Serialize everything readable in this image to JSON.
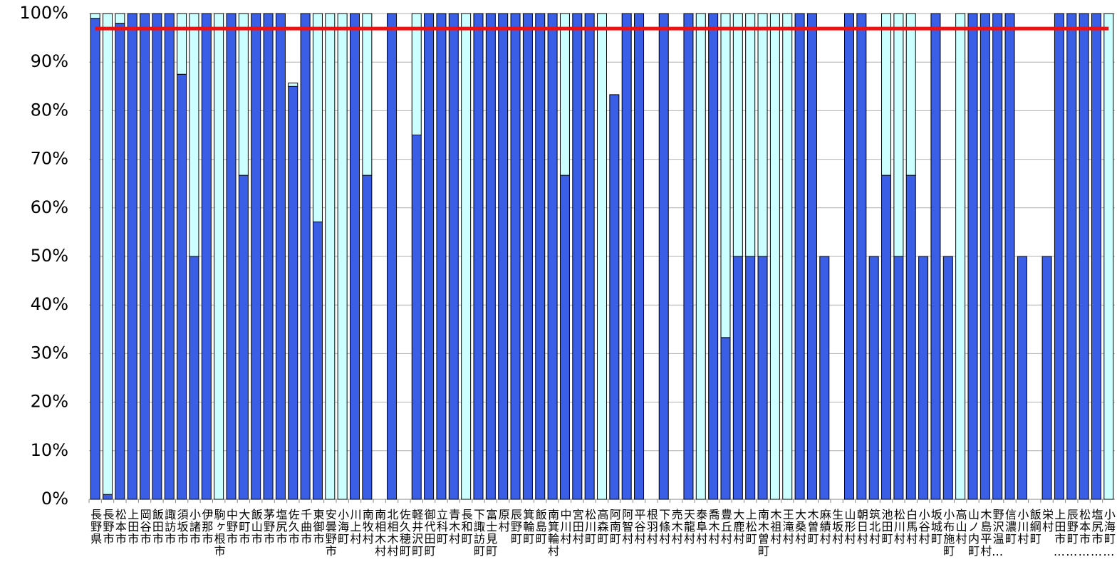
{
  "chart_data": {
    "type": "bar",
    "stacked": true,
    "grid": true,
    "categories": [
      "長野県",
      "長野市",
      "松本市",
      "上田市",
      "岡谷市",
      "飯田市",
      "諏訪市",
      "須坂市",
      "小諸市",
      "伊那市",
      "駒ヶ根市",
      "中野市",
      "大町市",
      "飯山市",
      "茅野市",
      "塩尻市",
      "佐久市",
      "千曲市",
      "東御市",
      "安曇野市",
      "小海町",
      "川上村",
      "南牧村",
      "南相木村",
      "北相木村",
      "佐久穂町",
      "軽井沢町",
      "御代田町",
      "立科町",
      "青木村",
      "長和町",
      "下諏訪町",
      "富士見町",
      "原村",
      "辰野町",
      "箕輪町",
      "飯島町",
      "南箕輪村",
      "中川村",
      "宮田村",
      "松川町",
      "高森町",
      "阿南町",
      "阿智村",
      "平谷村",
      "根羽村",
      "下條村",
      "売木村",
      "天龍村",
      "泰阜村",
      "喬木村",
      "豊丘村",
      "大鹿村",
      "上松町",
      "南木曽町",
      "木祖村",
      "王滝村",
      "大桑村",
      "木曽町",
      "麻績村",
      "生坂村",
      "山形村",
      "朝日村",
      "筑北村",
      "池田町",
      "松川村",
      "白馬村",
      "小谷村",
      "坂城町",
      "小布施町",
      "高山村",
      "山ノ内町",
      "木島平村",
      "野沢温…",
      "信濃町",
      "小川村",
      "飯綱町",
      "栄村",
      "上田市…",
      "辰野町…",
      "松本市…",
      "塩尻市…",
      "小海町…"
    ],
    "series": [
      {
        "color": "#3a5ee6",
        "values": [
          99,
          1,
          98,
          100,
          100,
          100,
          100,
          87.5,
          50,
          100,
          0,
          100,
          66.7,
          100,
          100,
          100,
          85,
          100,
          57.1,
          0,
          0,
          100,
          66.7,
          0,
          100,
          0,
          75,
          100,
          100,
          100,
          0,
          100,
          100,
          100,
          100,
          100,
          100,
          100,
          66.7,
          100,
          100,
          0,
          83.3,
          100,
          100,
          0,
          100,
          0,
          100,
          0,
          100,
          33.3,
          50,
          50,
          50,
          0,
          0,
          100,
          100,
          50,
          0,
          100,
          100,
          50,
          66.7,
          50,
          66.7,
          50,
          100,
          50,
          0,
          100,
          100,
          100,
          100,
          50,
          0,
          50,
          100,
          100,
          100,
          100,
          0
        ]
      },
      {
        "color": "#ccffff",
        "values": [
          1,
          99,
          2,
          0,
          0,
          0,
          0,
          12.5,
          50,
          0,
          100,
          0,
          33.3,
          0,
          0,
          0,
          0.7,
          0,
          42.9,
          100,
          100,
          0,
          33.3,
          0,
          0,
          0,
          25,
          0,
          0,
          0,
          100,
          0,
          0,
          0,
          0,
          0,
          0,
          0,
          33.3,
          0,
          0,
          100,
          0,
          0,
          0,
          0,
          0,
          0,
          0,
          100,
          0,
          66.7,
          50,
          50,
          50,
          100,
          100,
          0,
          0,
          0,
          0,
          0,
          0,
          0,
          33.3,
          50,
          33.3,
          0,
          0,
          0,
          100,
          0,
          0,
          0,
          0,
          0,
          0,
          0,
          0,
          0,
          0,
          0,
          100
        ]
      },
      {
        "type": "line",
        "color": "#ee1111",
        "values": [
          96.9,
          96.9,
          96.9,
          96.9,
          96.9,
          96.9,
          96.9,
          96.9,
          96.9,
          96.9,
          96.9,
          96.9,
          96.9,
          96.9,
          96.9,
          96.9,
          96.9,
          96.9,
          96.9,
          96.9,
          96.9,
          96.9,
          96.9,
          96.9,
          96.9,
          96.9,
          96.9,
          96.9,
          96.9,
          96.9,
          96.9,
          96.9,
          96.9,
          96.9,
          96.9,
          96.9,
          96.9,
          96.9,
          96.9,
          96.9,
          96.9,
          96.9,
          96.9,
          96.9,
          96.9,
          96.9,
          96.9,
          96.9,
          96.9,
          96.9,
          96.9,
          96.9,
          96.9,
          96.9,
          96.9,
          96.9,
          96.9,
          96.9,
          96.9,
          96.9,
          96.9,
          96.9,
          96.9,
          96.9,
          96.9,
          96.9,
          96.9,
          96.9,
          96.9,
          96.9,
          96.9,
          96.9,
          96.9,
          96.9,
          96.9,
          96.9,
          96.9,
          96.9,
          96.9,
          96.9,
          96.9,
          96.9,
          96.9
        ]
      }
    ],
    "ylim": [
      0,
      100
    ],
    "yticks": [
      {
        "value": 0,
        "label": "0%"
      },
      {
        "value": 10,
        "label": "10%"
      },
      {
        "value": 20,
        "label": "20%"
      },
      {
        "value": 30,
        "label": "30%"
      },
      {
        "value": 40,
        "label": "40%"
      },
      {
        "value": 50,
        "label": "50%"
      },
      {
        "value": 60,
        "label": "60%"
      },
      {
        "value": 70,
        "label": "70%"
      },
      {
        "value": 80,
        "label": "80%"
      },
      {
        "value": 90,
        "label": "90%"
      },
      {
        "value": 100,
        "label": "100%"
      }
    ]
  }
}
